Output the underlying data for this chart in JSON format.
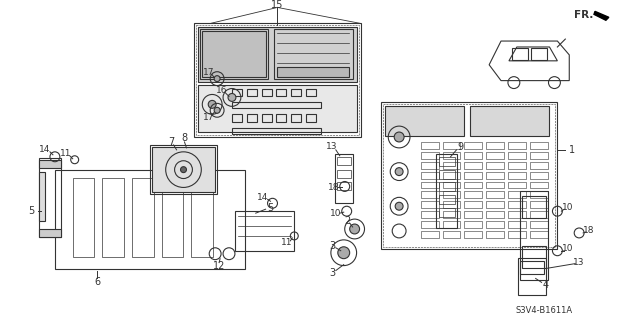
{
  "background_color": "#ffffff",
  "line_color": "#333333",
  "diagram_code": "S3V4-B1611A",
  "fig_width": 6.4,
  "fig_height": 3.19,
  "dpi": 100
}
